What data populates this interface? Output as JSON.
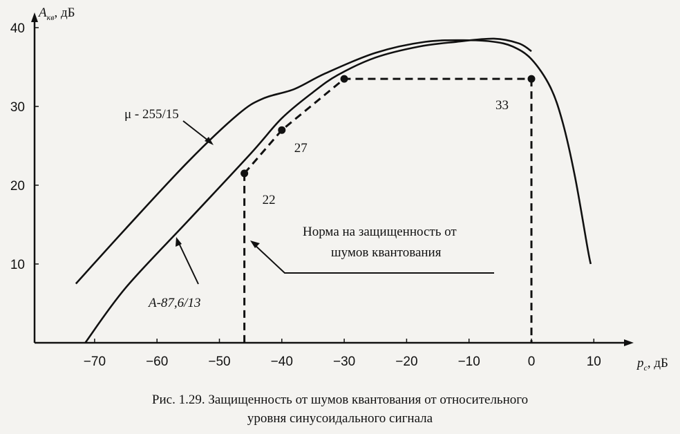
{
  "chart_data": {
    "type": "line",
    "ylabel": "A",
    "ylabel_sub": "кв",
    "ylabel_unit": ", дБ",
    "xlabel": "p",
    "xlabel_sub": "c",
    "xlabel_unit": ", дБ",
    "xlim": [
      -75,
      12
    ],
    "ylim": [
      0,
      41
    ],
    "x_ticks": [
      -70,
      -60,
      -50,
      -40,
      -30,
      -20,
      -10,
      0,
      10
    ],
    "x_tick_labels": [
      "−70",
      "−60",
      "−50",
      "−40",
      "−30",
      "−20",
      "−10",
      "0",
      "10"
    ],
    "y_ticks": [
      10,
      20,
      30,
      40
    ],
    "y_tick_labels": [
      "10",
      "20",
      "30",
      "40"
    ],
    "grid": false,
    "series": [
      {
        "name": "μ - 255/15",
        "x": [
          -73,
          -65,
          -55,
          -47,
          -43,
          -38,
          -33,
          -25,
          -17,
          -10,
          -6,
          -3,
          0,
          3,
          5,
          7,
          9,
          9.5
        ],
        "y": [
          7.5,
          14.5,
          23,
          29,
          31,
          32.2,
          34.2,
          36.8,
          38.2,
          38.4,
          38.2,
          37.6,
          36,
          32.5,
          28,
          21,
          12,
          10
        ]
      },
      {
        "name": "A-87,6/13",
        "x": [
          -71.5,
          -65,
          -55,
          -45,
          -40,
          -35,
          -31,
          -25,
          -18,
          -12,
          -6,
          -2,
          0
        ],
        "y": [
          0,
          7,
          15.5,
          24,
          28.5,
          31.8,
          34,
          36.2,
          37.6,
          38.2,
          38.6,
          38,
          37
        ]
      }
    ],
    "norm_points": [
      {
        "x": -46,
        "y": 21.5,
        "label": "22"
      },
      {
        "x": -40,
        "y": 27,
        "label": "27"
      },
      {
        "x": -30,
        "y": 33.5,
        "label": "33"
      },
      {
        "x": 0,
        "y": 33.5,
        "label": "33"
      }
    ],
    "norm_drops_x": [
      -46,
      0
    ],
    "annotations": {
      "norm_line1": "Норма на защищенность от",
      "norm_line2": "шумов квантования"
    }
  },
  "caption": {
    "line1": "Рис. 1.29. Защищенность от шумов квантования от относительного",
    "line2": "уровня синусоидального сигнала"
  }
}
